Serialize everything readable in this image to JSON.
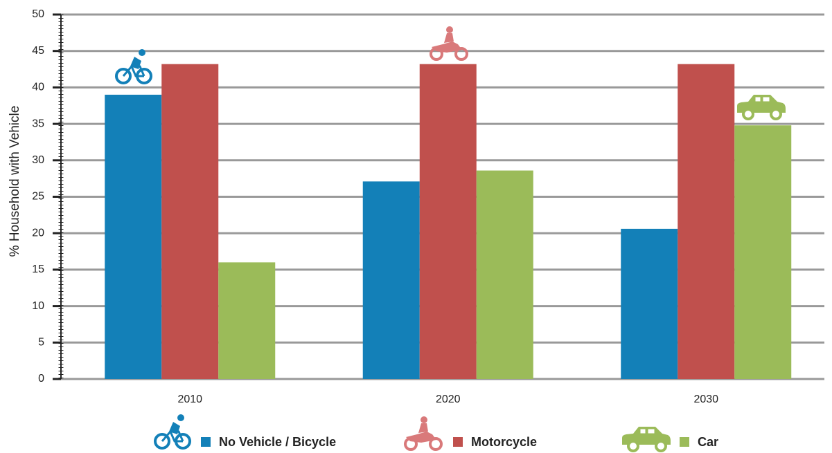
{
  "chart_data": {
    "type": "bar",
    "y_label": "% Household with Vehicle",
    "categories": [
      "2010",
      "2020",
      "2030"
    ],
    "series": [
      {
        "name": "No Vehicle / Bicycle",
        "color": "#1380b8",
        "values": [
          39,
          27.1,
          20.6
        ]
      },
      {
        "name": "Motorcycle",
        "color": "#c0504d",
        "values": [
          43.2,
          43.2,
          43.2
        ]
      },
      {
        "name": "Car",
        "color": "#9bbb59",
        "values": [
          16,
          28.6,
          34.8
        ]
      }
    ],
    "ylim": [
      0,
      50
    ],
    "yticks": [
      0,
      5,
      10,
      15,
      20,
      25,
      30,
      35,
      40,
      45,
      50
    ],
    "grid": true
  }
}
